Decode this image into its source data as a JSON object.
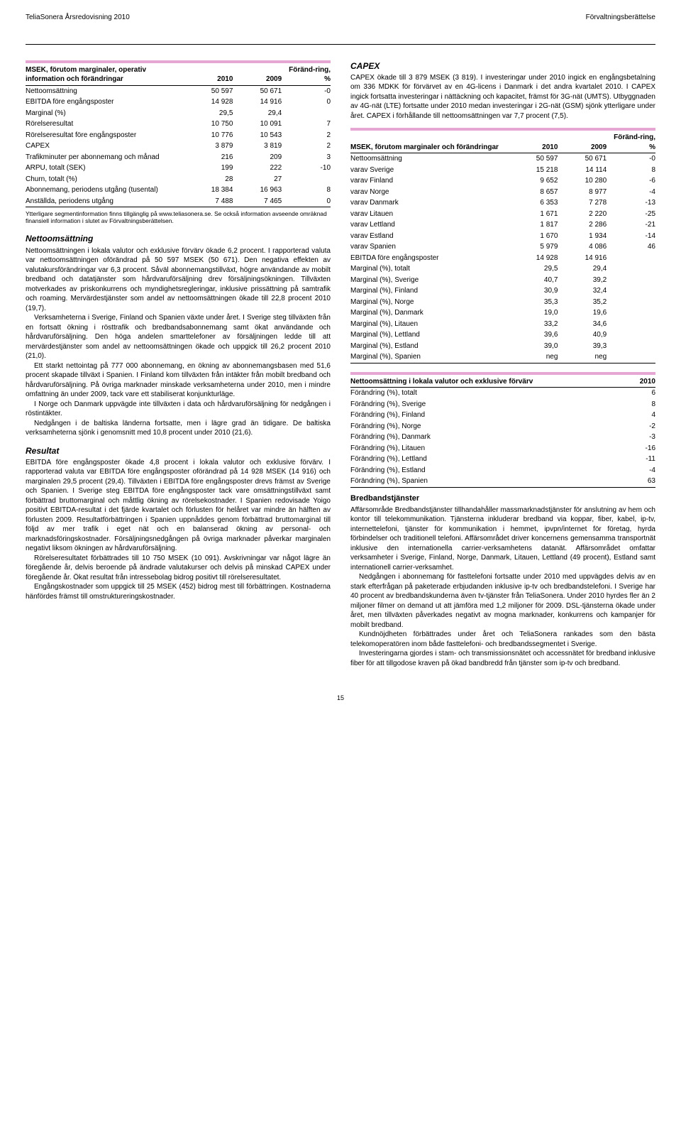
{
  "header": {
    "left": "TeliaSonera Årsredovisning 2010",
    "right": "Förvaltningsberättelse"
  },
  "page_number": "15",
  "accent_color": "#e6a6d4",
  "table1": {
    "header_label": "MSEK, förutom marginaler, operativ information och förändringar",
    "cols": [
      "2010",
      "2009",
      "Föränd-ring, %"
    ],
    "rows": [
      {
        "label": "Nettoomsättning",
        "v": [
          "50 597",
          "50 671",
          "-0"
        ]
      },
      {
        "label": "EBITDA före engångsposter",
        "v": [
          "14 928",
          "14 916",
          "0"
        ]
      },
      {
        "label": "Marginal (%)",
        "v": [
          "29,5",
          "29,4",
          ""
        ]
      },
      {
        "label": "Rörelseresultat",
        "v": [
          "10 750",
          "10 091",
          "7"
        ]
      },
      {
        "label": "Rörelseresultat före engångsposter",
        "v": [
          "10 776",
          "10 543",
          "2"
        ]
      },
      {
        "label": "CAPEX",
        "v": [
          "3 879",
          "3 819",
          "2"
        ]
      },
      {
        "label": "Trafikminuter per abonnemang och månad",
        "v": [
          "216",
          "209",
          "3"
        ]
      },
      {
        "label": "ARPU, totalt (SEK)",
        "v": [
          "199",
          "222",
          "-10"
        ]
      },
      {
        "label": "Churn, totalt (%)",
        "v": [
          "28",
          "27",
          ""
        ]
      },
      {
        "label": "Abonnemang, periodens utgång (tusental)",
        "v": [
          "18 384",
          "16 963",
          "8"
        ]
      },
      {
        "label": "Anställda, periodens utgång",
        "v": [
          "7 488",
          "7 465",
          "0"
        ]
      }
    ],
    "footnote": "Ytterligare segmentinformation finns tillgänglig på www.teliasonera.se. Se också information avseende omräknad finansiell information i slutet av Förvaltningsberättelsen."
  },
  "left": {
    "nettoomsattning": {
      "heading": "Nettoomsättning",
      "p1": "Nettoomsättningen i lokala valutor och exklusive förvärv ökade 6,2 procent. I rapporterad valuta var nettoomsättningen oförändrad på 50 597 MSEK (50 671). Den negativa effekten av valutakursförändringar var 6,3 procent. Såväl abonnemangstillväxt, högre användande av mobilt bredband och datatjänster som hårdvaruförsäljning drev försäljningsökningen. Tillväxten motverkades av priskonkurrens och myndighetsregleringar, inklusive prissättning på samtrafik och roaming. Mervärdestjänster som andel av nettoomsättningen ökade till 22,8 procent 2010 (19,7).",
      "p2": "Verksamheterna i Sverige, Finland och Spanien växte under året. I Sverige steg tillväxten från en fortsatt ökning i rösttrafik och bredbandsabonnemang samt ökat användande och hårdvaruförsäljning. Den höga andelen smarttelefoner av försäljningen ledde till att mervärdestjänster som andel av nettoomsättningen ökade och uppgick till 26,2 procent 2010 (21,0).",
      "p3": "Ett starkt nettointag på 777 000 abonnemang, en ökning av abonnemangsbasen med 51,6 procent skapade tillväxt i Spanien. I Finland kom tillväxten från intäkter från mobilt bredband och hårdvaruförsäljning. På övriga marknader minskade verksamheterna under 2010, men i mindre omfattning än under 2009, tack vare ett stabiliserat konjunkturläge.",
      "p4": "I Norge och Danmark uppvägde inte tillväxten i data och hårdvaruförsäljning för nedgången i röstintäkter.",
      "p5": "Nedgången i de baltiska länderna fortsatte, men i lägre grad än tidigare. De baltiska verksamheterna sjönk i genomsnitt med 10,8 procent under 2010 (21,6)."
    },
    "resultat": {
      "heading": "Resultat",
      "p1": "EBITDA före engångsposter ökade 4,8 procent i lokala valutor och exklusive förvärv. I rapporterad valuta var EBITDA före engångsposter oförändrad på 14 928 MSEK (14 916) och marginalen 29,5 procent (29,4). Tillväxten i EBITDA före engångsposter drevs främst av Sverige och Spanien. I Sverige steg EBITDA före engångsposter tack vare omsättningstillväxt samt förbättrad bruttomarginal och måttlig ökning av rörelsekostnader. I Spanien redovisade Yoigo positivt EBITDA-resultat i det fjärde kvartalet och förlusten för helåret var mindre än hälften av förlusten 2009. Resultatförbättringen i Spanien uppnåddes genom förbättrad bruttomarginal till följd av mer trafik i eget nät och en balanserad ökning av personal- och marknadsföringskostnader. Försäljningsnedgången på övriga marknader påverkar marginalen negativt liksom ökningen av hårdvaruförsäljning.",
      "p2": "Rörelseresultatet förbättrades till 10 750 MSEK (10 091). Avskrivningar var något lägre än föregående år, delvis beroende på ändrade valutakurser och delvis på minskad CAPEX under föregående år. Ökat resultat från intressebolag bidrog positivt till rörelseresultatet.",
      "p3": "Engångskostnader som uppgick till 25 MSEK (452) bidrog mest till förbättringen. Kostnaderna hänfördes främst till omstruktureringskostnader."
    }
  },
  "right": {
    "capex": {
      "heading": "CAPEX",
      "p1": "CAPEX ökade till 3 879 MSEK (3 819). I investeringar under 2010 ingick en engångsbetalning om 336 MDKK för förvärvet av en 4G-licens i Danmark i det andra kvartalet 2010. I CAPEX ingick fortsatta investeringar i nättäckning och kapacitet, främst för 3G-nät (UMTS). Utbyggnaden av 4G-nät (LTE) fortsatte under 2010 medan investeringar i 2G-nät (GSM) sjönk ytterligare under året. CAPEX i förhållande till nettoomsättningen var 7,7 procent (7,5)."
    },
    "table2": {
      "header_label": "MSEK, förutom marginaler och förändringar",
      "cols": [
        "2010",
        "2009",
        "Föränd-ring, %"
      ],
      "rows": [
        {
          "label": "Nettoomsättning",
          "v": [
            "50 597",
            "50 671",
            "-0"
          ]
        },
        {
          "label": "varav Sverige",
          "v": [
            "15 218",
            "14 114",
            "8"
          ]
        },
        {
          "label": "varav Finland",
          "v": [
            "9 652",
            "10 280",
            "-6"
          ]
        },
        {
          "label": "varav Norge",
          "v": [
            "8 657",
            "8 977",
            "-4"
          ]
        },
        {
          "label": "varav Danmark",
          "v": [
            "6 353",
            "7 278",
            "-13"
          ]
        },
        {
          "label": "varav Litauen",
          "v": [
            "1 671",
            "2 220",
            "-25"
          ]
        },
        {
          "label": "varav Lettland",
          "v": [
            "1 817",
            "2 286",
            "-21"
          ]
        },
        {
          "label": "varav Estland",
          "v": [
            "1 670",
            "1 934",
            "-14"
          ]
        },
        {
          "label": "varav Spanien",
          "v": [
            "5 979",
            "4 086",
            "46"
          ]
        },
        {
          "label": "EBITDA före engångsposter",
          "v": [
            "14 928",
            "14 916",
            ""
          ]
        },
        {
          "label": "Marginal (%), totalt",
          "v": [
            "29,5",
            "29,4",
            ""
          ]
        },
        {
          "label": "Marginal (%), Sverige",
          "v": [
            "40,7",
            "39,2",
            ""
          ]
        },
        {
          "label": "Marginal (%), Finland",
          "v": [
            "30,9",
            "32,4",
            ""
          ]
        },
        {
          "label": "Marginal (%), Norge",
          "v": [
            "35,3",
            "35,2",
            ""
          ]
        },
        {
          "label": "Marginal (%), Danmark",
          "v": [
            "19,0",
            "19,6",
            ""
          ]
        },
        {
          "label": "Marginal (%), Litauen",
          "v": [
            "33,2",
            "34,6",
            ""
          ]
        },
        {
          "label": "Marginal (%), Lettland",
          "v": [
            "39,6",
            "40,9",
            ""
          ]
        },
        {
          "label": "Marginal (%), Estland",
          "v": [
            "39,0",
            "39,3",
            ""
          ]
        },
        {
          "label": "Marginal (%), Spanien",
          "v": [
            "neg",
            "neg",
            ""
          ]
        }
      ]
    },
    "table3": {
      "header_label": "Nettoomsättning i lokala valutor och exklusive förvärv",
      "cols": [
        "2010"
      ],
      "rows": [
        {
          "label": "Förändring (%), totalt",
          "v": [
            "6"
          ]
        },
        {
          "label": "Förändring (%), Sverige",
          "v": [
            "8"
          ]
        },
        {
          "label": "Förändring (%), Finland",
          "v": [
            "4"
          ]
        },
        {
          "label": "Förändring (%), Norge",
          "v": [
            "-2"
          ]
        },
        {
          "label": "Förändring (%), Danmark",
          "v": [
            "-3"
          ]
        },
        {
          "label": "Förändring (%), Litauen",
          "v": [
            "-16"
          ]
        },
        {
          "label": "Förändring (%), Lettland",
          "v": [
            "-11"
          ]
        },
        {
          "label": "Förändring (%), Estland",
          "v": [
            "-4"
          ]
        },
        {
          "label": "Förändring (%), Spanien",
          "v": [
            "63"
          ]
        }
      ]
    },
    "bredband": {
      "heading": "Bredbandstjänster",
      "p1": "Affärsområde Bredbandstjänster tillhandahåller massmarknadstjänster för anslutning av hem och kontor till telekommunikation. Tjänsterna inkluderar bredband via koppar, fiber, kabel, ip-tv, internettelefoni, tjänster för kommunikation i hemmet, ipvpn/internet för företag, hyrda förbindelser och traditionell telefoni. Affärsområdet driver koncernens gemensamma transportnät inklusive den internationella carrier-verksamhetens datanät. Affärsområdet omfattar verksamheter i Sverige, Finland, Norge, Danmark, Litauen, Lettland (49 procent), Estland samt internationell carrier-verksamhet.",
      "p2": "Nedgången i abonnemang för fasttelefoni fortsatte under 2010 med uppvägdes delvis av en stark efterfrågan på paketerade erbjudanden inklusive ip-tv och bredbandstelefoni. I Sverige har 40 procent av bredbandskunderna även tv-tjänster från TeliaSonera. Under 2010 hyrdes fler än 2 miljoner filmer on demand ut att jämföra med 1,2 miljoner för 2009. DSL-tjänsterna ökade under året, men tillväxten påverkades negativt av mogna marknader, konkurrens och kampanjer för mobilt bredband.",
      "p3": "Kundnöjdheten förbättrades under året och TeliaSonera rankades som den bästa telekomoperatören inom både fasttelefoni- och bredbandssegmentet i Sverige.",
      "p4": "Investeringarna gjordes i stam- och transmissionsnätet och accessnätet för bredband inklusive fiber för att tillgodose kraven på ökad bandbredd från tjänster som ip-tv och bredband."
    }
  }
}
